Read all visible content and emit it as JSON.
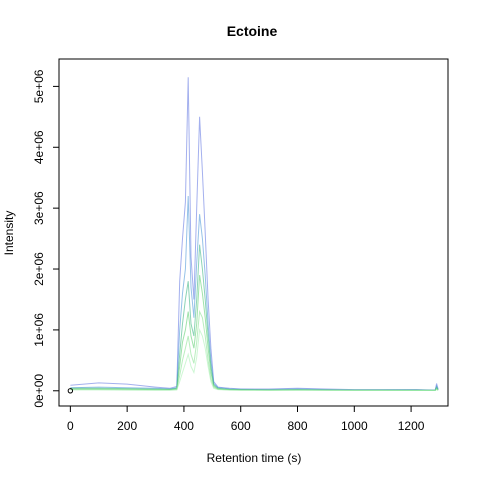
{
  "chart_data": {
    "type": "line",
    "title": "Ectoine",
    "xlabel": "Retention time (s)",
    "ylabel": "Intensity",
    "xlim": [
      -40,
      1330
    ],
    "ylim": [
      -250000,
      5450000
    ],
    "x_ticks": [
      0,
      200,
      400,
      600,
      800,
      1000,
      1200
    ],
    "x_tick_labels": [
      "0",
      "200",
      "400",
      "600",
      "800",
      "1000",
      "1200"
    ],
    "y_ticks": [
      0,
      1000000,
      2000000,
      3000000,
      4000000,
      5000000
    ],
    "y_tick_labels": [
      "0e+00",
      "1e+06",
      "2e+06",
      "3e+06",
      "4e+06",
      "5e+06"
    ],
    "grid": false,
    "legend": "none",
    "colors": [
      "#5a6fe0",
      "#3f8fd6",
      "#2fb07a",
      "#52cc66",
      "#7fe08a",
      "#a6f0b0"
    ],
    "series": [
      {
        "x": [
          0,
          100,
          200,
          300,
          350,
          375,
          385,
          395,
          405,
          415,
          425,
          435,
          445,
          455,
          465,
          475,
          485,
          495,
          505,
          520,
          540,
          560,
          600,
          700,
          800,
          900,
          1000,
          1100,
          1220,
          1285,
          1290,
          1295
        ],
        "y": [
          90000,
          130000,
          110000,
          60000,
          40000,
          70000,
          1800000,
          2500000,
          3100000,
          5150000,
          2200000,
          1500000,
          3000000,
          4500000,
          3600000,
          2600000,
          1500000,
          700000,
          150000,
          60000,
          50000,
          40000,
          30000,
          30000,
          40000,
          30000,
          20000,
          20000,
          20000,
          10000,
          120000,
          30000
        ]
      },
      {
        "x": [
          0,
          100,
          200,
          300,
          350,
          375,
          385,
          395,
          405,
          415,
          425,
          435,
          445,
          455,
          465,
          475,
          485,
          495,
          505,
          520,
          540,
          560,
          600,
          700,
          800,
          900,
          1000,
          1100,
          1220,
          1285,
          1290,
          1295
        ],
        "y": [
          50000,
          60000,
          50000,
          40000,
          30000,
          50000,
          1000000,
          1600000,
          2000000,
          3200000,
          1700000,
          1200000,
          2100000,
          2900000,
          2500000,
          1900000,
          1100000,
          500000,
          120000,
          50000,
          40000,
          30000,
          25000,
          20000,
          30000,
          20000,
          15000,
          15000,
          15000,
          10000,
          80000,
          20000
        ]
      },
      {
        "x": [
          0,
          100,
          200,
          300,
          350,
          375,
          385,
          395,
          405,
          415,
          425,
          435,
          445,
          455,
          465,
          475,
          485,
          495,
          505,
          520,
          540,
          560,
          600,
          700,
          800,
          900,
          1000,
          1100,
          1220,
          1285,
          1290,
          1295
        ],
        "y": [
          40000,
          40000,
          35000,
          30000,
          25000,
          40000,
          600000,
          1100000,
          1500000,
          1800000,
          1100000,
          900000,
          1500000,
          2400000,
          2000000,
          1500000,
          900000,
          400000,
          100000,
          40000,
          30000,
          25000,
          20000,
          15000,
          20000,
          15000,
          12000,
          12000,
          10000,
          8000,
          60000,
          15000
        ]
      },
      {
        "x": [
          0,
          100,
          200,
          300,
          350,
          375,
          385,
          395,
          405,
          415,
          425,
          435,
          445,
          455,
          465,
          475,
          485,
          495,
          505,
          520,
          540,
          560,
          600,
          700,
          800,
          900,
          1000,
          1100,
          1220,
          1285,
          1290,
          1295
        ],
        "y": [
          30000,
          30000,
          25000,
          20000,
          20000,
          30000,
          400000,
          800000,
          1000000,
          1300000,
          900000,
          700000,
          1100000,
          1900000,
          1600000,
          1200000,
          700000,
          300000,
          80000,
          30000,
          25000,
          20000,
          15000,
          12000,
          15000,
          12000,
          10000,
          10000,
          8000,
          6000,
          40000,
          10000
        ]
      },
      {
        "x": [
          0,
          100,
          200,
          300,
          350,
          375,
          385,
          395,
          405,
          415,
          425,
          435,
          445,
          455,
          465,
          475,
          485,
          495,
          505,
          520,
          540,
          560,
          600,
          700,
          800,
          900,
          1000,
          1100,
          1220,
          1285,
          1290,
          1295
        ],
        "y": [
          20000,
          20000,
          18000,
          15000,
          15000,
          20000,
          250000,
          500000,
          700000,
          900000,
          600000,
          450000,
          800000,
          1300000,
          1200000,
          900000,
          500000,
          200000,
          60000,
          25000,
          20000,
          15000,
          12000,
          10000,
          12000,
          10000,
          8000,
          8000,
          6000,
          5000,
          30000,
          8000
        ]
      },
      {
        "x": [
          0,
          100,
          200,
          300,
          350,
          375,
          385,
          395,
          405,
          415,
          425,
          435,
          445,
          455,
          465,
          475,
          485,
          495,
          505,
          520,
          540,
          560,
          600,
          700,
          800,
          900,
          1000,
          1100,
          1220,
          1285,
          1290,
          1295
        ],
        "y": [
          15000,
          15000,
          12000,
          10000,
          10000,
          15000,
          150000,
          300000,
          450000,
          600000,
          400000,
          300000,
          550000,
          1000000,
          900000,
          700000,
          400000,
          150000,
          40000,
          20000,
          15000,
          12000,
          10000,
          8000,
          10000,
          8000,
          6000,
          6000,
          5000,
          4000,
          20000,
          6000
        ]
      }
    ],
    "annotations": [
      {
        "type": "open-circle-marker",
        "x": 0,
        "y": 0
      }
    ]
  }
}
